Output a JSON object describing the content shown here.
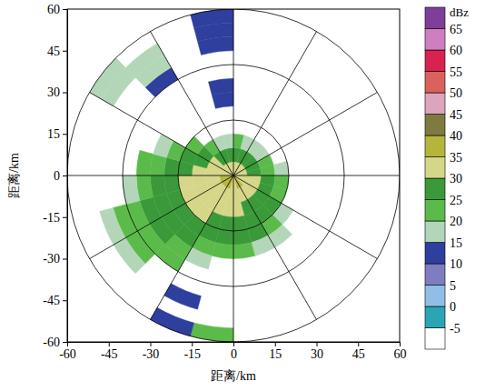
{
  "chart_data": {
    "type": "radar_ppi",
    "xlabel": "距离/km",
    "ylabel": "距离/km",
    "xlim": [
      -60,
      60
    ],
    "ylim": [
      -60,
      60
    ],
    "xticks": [
      -60,
      -45,
      -30,
      -15,
      0,
      15,
      30,
      45,
      60
    ],
    "yticks": [
      -60,
      -45,
      -30,
      -15,
      0,
      15,
      30,
      45,
      60
    ],
    "grid": true,
    "rticks": [
      20,
      40,
      60
    ],
    "thetaticks": [
      0,
      30,
      60,
      90,
      120,
      150,
      180,
      210,
      240,
      270,
      300,
      330
    ],
    "azimuth_edges": [
      0,
      15,
      30,
      45,
      60,
      75,
      90,
      105,
      120,
      135,
      150,
      165,
      180,
      195,
      210,
      225,
      240,
      255,
      270,
      285,
      300,
      315,
      330,
      345,
      360
    ],
    "range_edges": [
      0,
      5,
      10,
      15,
      20,
      25,
      30,
      35,
      40,
      45,
      50,
      55,
      60
    ],
    "values": [
      [
        32,
        28,
        20,
        null,
        null,
        null,
        null,
        null,
        null,
        null,
        null,
        null
      ],
      [
        32,
        28,
        18,
        null,
        null,
        null,
        null,
        null,
        null,
        null,
        null,
        null
      ],
      [
        33,
        27,
        15,
        null,
        null,
        null,
        null,
        null,
        null,
        null,
        null,
        null
      ],
      [
        33,
        28,
        18,
        null,
        null,
        null,
        null,
        null,
        null,
        null,
        null,
        null
      ],
      [
        32,
        27,
        22,
        null,
        null,
        null,
        null,
        null,
        null,
        null,
        null,
        null
      ],
      [
        33,
        28,
        24,
        15,
        null,
        null,
        null,
        null,
        null,
        null,
        null,
        null
      ],
      [
        33,
        30,
        27,
        20,
        null,
        null,
        null,
        null,
        null,
        null,
        null,
        null
      ],
      [
        34,
        30,
        28,
        22,
        null,
        null,
        null,
        null,
        null,
        null,
        null,
        null
      ],
      [
        33,
        30,
        28,
        25,
        18,
        null,
        null,
        null,
        null,
        null,
        null,
        null
      ],
      [
        35,
        31,
        28,
        26,
        22,
        15,
        null,
        null,
        null,
        null,
        null,
        null
      ],
      [
        35,
        32,
        29,
        27,
        25,
        18,
        null,
        null,
        null,
        null,
        null,
        null
      ],
      [
        34,
        32,
        30,
        28,
        26,
        20,
        null,
        null,
        null,
        null,
        null,
        null
      ],
      [
        34,
        32,
        30,
        28,
        25,
        22,
        null,
        null,
        null,
        null,
        null,
        22
      ],
      [
        35,
        32,
        31,
        29,
        27,
        24,
        18,
        null,
        null,
        12,
        null,
        12
      ],
      [
        35,
        33,
        31,
        30,
        28,
        26,
        24,
        20,
        null,
        null,
        null,
        null
      ],
      [
        36,
        33,
        32,
        30,
        28,
        27,
        26,
        24,
        22,
        18,
        null,
        null
      ],
      [
        35,
        33,
        32,
        31,
        29,
        27,
        25,
        23,
        20,
        15,
        null,
        null
      ],
      [
        35,
        33,
        31,
        30,
        28,
        26,
        22,
        18,
        null,
        null,
        null,
        null
      ],
      [
        34,
        32,
        30,
        28,
        26,
        24,
        20,
        null,
        null,
        null,
        null,
        null
      ],
      [
        33,
        31,
        29,
        26,
        22,
        17,
        null,
        null,
        null,
        null,
        null,
        null
      ],
      [
        32,
        30,
        27,
        22,
        null,
        null,
        null,
        null,
        null,
        null,
        18,
        15
      ],
      [
        31,
        28,
        22,
        null,
        null,
        null,
        null,
        null,
        12,
        16,
        18,
        null
      ],
      [
        31,
        27,
        18,
        null,
        null,
        null,
        null,
        null,
        null,
        null,
        null,
        null
      ],
      [
        32,
        27,
        18,
        null,
        null,
        12,
        12,
        null,
        null,
        12,
        12,
        12
      ]
    ],
    "colorbar": {
      "title": "dBz",
      "ticks": [
        -5,
        0,
        5,
        10,
        15,
        20,
        25,
        30,
        35,
        40,
        45,
        50,
        55,
        60,
        65
      ],
      "colors": [
        "#ffffff",
        "#2aa5b4",
        "#8fbfe6",
        "#7d7dc0",
        "#2e3f9e",
        "#b3d6b8",
        "#5bbb4a",
        "#3a9a3a",
        "#d6d689",
        "#b5b53c",
        "#7f7a40",
        "#dea3bd",
        "#d9625c",
        "#d9234f",
        "#cf7fbf",
        "#7f3f98"
      ]
    }
  }
}
